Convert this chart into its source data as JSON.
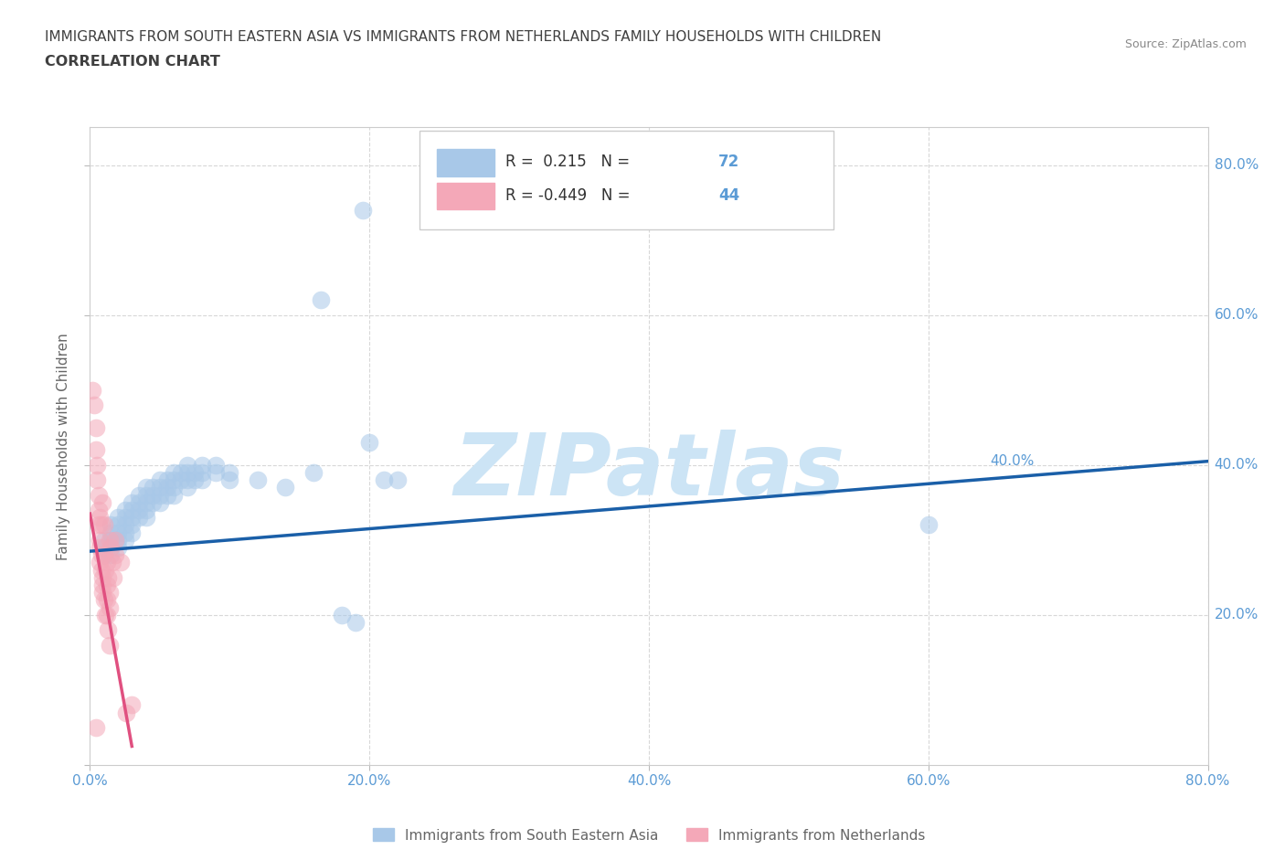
{
  "title_line1": "IMMIGRANTS FROM SOUTH EASTERN ASIA VS IMMIGRANTS FROM NETHERLANDS FAMILY HOUSEHOLDS WITH CHILDREN",
  "title_line2": "CORRELATION CHART",
  "source_text": "Source: ZipAtlas.com",
  "ylabel": "Family Households with Children",
  "xlim": [
    0.0,
    0.8
  ],
  "ylim": [
    0.0,
    0.85
  ],
  "xticks": [
    0.0,
    0.2,
    0.4,
    0.6,
    0.8
  ],
  "yticks": [
    0.0,
    0.2,
    0.4,
    0.6,
    0.8
  ],
  "xticklabels": [
    "0.0%",
    "20.0%",
    "40.0%",
    "60.0%",
    "80.0%"
  ],
  "right_yticklabels": [
    "20.0%",
    "40.0%",
    "60.0%",
    "80.0%"
  ],
  "blue_R": 0.215,
  "blue_N": 72,
  "pink_R": -0.449,
  "pink_N": 44,
  "blue_color": "#a8c8e8",
  "pink_color": "#f4a8b8",
  "blue_line_color": "#1a5fa8",
  "pink_line_color": "#e05080",
  "blue_scatter": [
    [
      0.01,
      0.3
    ],
    [
      0.01,
      0.29
    ],
    [
      0.01,
      0.28
    ],
    [
      0.015,
      0.32
    ],
    [
      0.015,
      0.31
    ],
    [
      0.015,
      0.3
    ],
    [
      0.015,
      0.29
    ],
    [
      0.015,
      0.28
    ],
    [
      0.02,
      0.33
    ],
    [
      0.02,
      0.32
    ],
    [
      0.02,
      0.31
    ],
    [
      0.02,
      0.3
    ],
    [
      0.02,
      0.29
    ],
    [
      0.025,
      0.34
    ],
    [
      0.025,
      0.33
    ],
    [
      0.025,
      0.32
    ],
    [
      0.025,
      0.31
    ],
    [
      0.025,
      0.3
    ],
    [
      0.03,
      0.35
    ],
    [
      0.03,
      0.34
    ],
    [
      0.03,
      0.33
    ],
    [
      0.03,
      0.32
    ],
    [
      0.03,
      0.31
    ],
    [
      0.035,
      0.36
    ],
    [
      0.035,
      0.35
    ],
    [
      0.035,
      0.34
    ],
    [
      0.035,
      0.33
    ],
    [
      0.04,
      0.37
    ],
    [
      0.04,
      0.36
    ],
    [
      0.04,
      0.35
    ],
    [
      0.04,
      0.34
    ],
    [
      0.04,
      0.33
    ],
    [
      0.045,
      0.37
    ],
    [
      0.045,
      0.36
    ],
    [
      0.045,
      0.35
    ],
    [
      0.05,
      0.38
    ],
    [
      0.05,
      0.37
    ],
    [
      0.05,
      0.36
    ],
    [
      0.05,
      0.35
    ],
    [
      0.055,
      0.38
    ],
    [
      0.055,
      0.37
    ],
    [
      0.055,
      0.36
    ],
    [
      0.06,
      0.39
    ],
    [
      0.06,
      0.38
    ],
    [
      0.06,
      0.37
    ],
    [
      0.06,
      0.36
    ],
    [
      0.065,
      0.39
    ],
    [
      0.065,
      0.38
    ],
    [
      0.07,
      0.4
    ],
    [
      0.07,
      0.39
    ],
    [
      0.07,
      0.38
    ],
    [
      0.07,
      0.37
    ],
    [
      0.075,
      0.39
    ],
    [
      0.075,
      0.38
    ],
    [
      0.08,
      0.4
    ],
    [
      0.08,
      0.39
    ],
    [
      0.08,
      0.38
    ],
    [
      0.09,
      0.4
    ],
    [
      0.09,
      0.39
    ],
    [
      0.1,
      0.39
    ],
    [
      0.1,
      0.38
    ],
    [
      0.12,
      0.38
    ],
    [
      0.14,
      0.37
    ],
    [
      0.16,
      0.39
    ],
    [
      0.2,
      0.43
    ],
    [
      0.22,
      0.38
    ],
    [
      0.18,
      0.2
    ],
    [
      0.19,
      0.19
    ],
    [
      0.165,
      0.62
    ],
    [
      0.21,
      0.38
    ],
    [
      0.6,
      0.32
    ],
    [
      0.195,
      0.74
    ]
  ],
  "pink_scatter": [
    [
      0.002,
      0.5
    ],
    [
      0.003,
      0.48
    ],
    [
      0.004,
      0.45
    ],
    [
      0.004,
      0.42
    ],
    [
      0.005,
      0.4
    ],
    [
      0.005,
      0.38
    ],
    [
      0.006,
      0.36
    ],
    [
      0.006,
      0.34
    ],
    [
      0.006,
      0.32
    ],
    [
      0.007,
      0.3
    ],
    [
      0.007,
      0.29
    ],
    [
      0.007,
      0.27
    ],
    [
      0.008,
      0.32
    ],
    [
      0.008,
      0.28
    ],
    [
      0.008,
      0.26
    ],
    [
      0.009,
      0.24
    ],
    [
      0.009,
      0.25
    ],
    [
      0.009,
      0.23
    ],
    [
      0.01,
      0.32
    ],
    [
      0.01,
      0.22
    ],
    [
      0.01,
      0.28
    ],
    [
      0.011,
      0.26
    ],
    [
      0.011,
      0.2
    ],
    [
      0.012,
      0.24
    ],
    [
      0.012,
      0.27
    ],
    [
      0.012,
      0.22
    ],
    [
      0.013,
      0.25
    ],
    [
      0.013,
      0.18
    ],
    [
      0.014,
      0.23
    ],
    [
      0.014,
      0.21
    ],
    [
      0.014,
      0.3
    ],
    [
      0.014,
      0.16
    ],
    [
      0.015,
      0.29
    ],
    [
      0.016,
      0.27
    ],
    [
      0.017,
      0.25
    ],
    [
      0.018,
      0.28
    ],
    [
      0.018,
      0.3
    ],
    [
      0.022,
      0.27
    ],
    [
      0.026,
      0.07
    ],
    [
      0.03,
      0.08
    ],
    [
      0.004,
      0.05
    ],
    [
      0.009,
      0.35
    ],
    [
      0.007,
      0.33
    ],
    [
      0.012,
      0.2
    ]
  ],
  "blue_trend_x": [
    0.0,
    0.8
  ],
  "blue_trend_y": [
    0.285,
    0.405
  ],
  "pink_trend_x": [
    0.0,
    0.03
  ],
  "pink_trend_y": [
    0.335,
    0.025
  ],
  "watermark": "ZIPatlas",
  "watermark_color": "#cce4f5",
  "grid_color": "#d8d8d8",
  "title_color": "#404040",
  "tick_color": "#5b9bd5",
  "label_color": "#666666"
}
